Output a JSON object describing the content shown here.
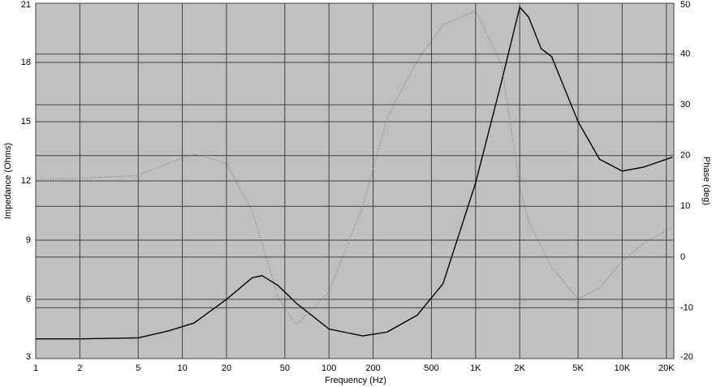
{
  "chart_data": {
    "type": "line",
    "xlabel": "Frequency (Hz)",
    "ylabel": "Impedance (Ohms)",
    "y2label": "Phase (deg)",
    "xscale": "log",
    "grid": true,
    "x": [
      1,
      2,
      5,
      8,
      12,
      20,
      30,
      35,
      45,
      60,
      100,
      170,
      250,
      400,
      600,
      1000,
      1500,
      2000,
      2300,
      2800,
      3300,
      5000,
      7000,
      10000,
      14000,
      22000
    ],
    "series": [
      {
        "color": "#000000",
        "axis": "y",
        "style": "solid",
        "values": [
          4.0,
          4.0,
          4.05,
          4.4,
          4.8,
          6.0,
          7.1,
          7.2,
          6.7,
          5.8,
          4.5,
          4.15,
          4.35,
          5.2,
          6.8,
          11.9,
          17,
          20.8,
          20.3,
          18.7,
          18.3,
          15.0,
          13.1,
          12.5,
          12.7,
          13.2
        ]
      },
      {
        "color": "#707070",
        "axis": "y2",
        "style": "dotted",
        "values": [
          15.3,
          15.5,
          16.1,
          18.5,
          20.3,
          18.5,
          9,
          2.7,
          -8,
          -13.3,
          -6.9,
          10,
          27.5,
          38.7,
          45.8,
          48.5,
          38,
          13.9,
          7,
          2,
          -2,
          -8.2,
          -6.1,
          -0.8,
          2.7,
          5.9
        ]
      }
    ],
    "xlim": [
      1,
      22500
    ],
    "ylim": [
      3,
      21
    ],
    "y2lim": [
      -20,
      50
    ],
    "xticks": [
      1,
      2,
      5,
      10,
      20,
      50,
      100,
      200,
      500,
      {
        "value": 1000,
        "label": "1K"
      },
      {
        "value": 2000,
        "label": "2K"
      },
      {
        "value": 5000,
        "label": "5K"
      },
      {
        "value": 10000,
        "label": "10K"
      },
      {
        "value": 20000,
        "label": "20K"
      }
    ],
    "yticks": [
      3,
      6,
      9,
      12,
      15,
      18,
      21
    ],
    "y2ticks": [
      -20,
      -10,
      0,
      10,
      20,
      30,
      40,
      50
    ]
  }
}
